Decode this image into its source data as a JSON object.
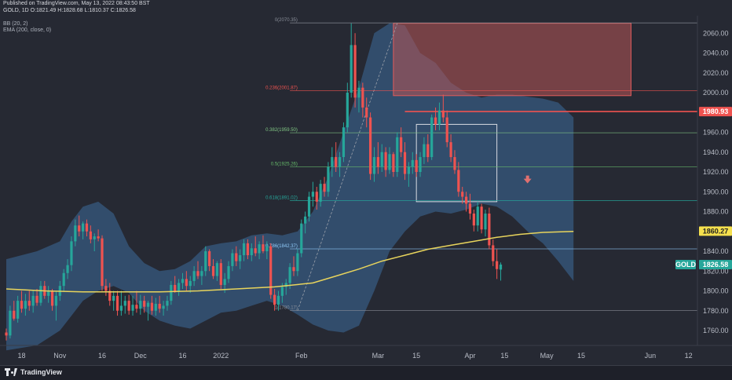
{
  "header": {
    "published": "Published on TradingView.com, May 13, 2022 08:43:50 BST",
    "symbol_line": "GOLD, 1D  O:1821.49  H:1828.68  L:1810.37  C:1826.58",
    "indicator_bb": "BB (20, 2)",
    "indicator_ema": "EMA (200, close, 0)"
  },
  "footer": {
    "brand": "TradingView"
  },
  "colors": {
    "background": "#262933",
    "up_candle": "#26a69a",
    "down_candle": "#ef5350",
    "bollinger_fill": "#3d6b9a",
    "ema": "#e8d45c",
    "price_tag": "#26a69a",
    "resistance_tag": "#ef5350",
    "ema_tag": "#f5e04e"
  },
  "chart_data": {
    "type": "candlestick",
    "symbol": "GOLD",
    "timeframe": "1D",
    "ylim": [
      1745,
      2075
    ],
    "y_ticks": [
      1760,
      1780,
      1800,
      1820,
      1840,
      1860,
      1880,
      1900,
      1920,
      1940,
      1960,
      1980,
      2000,
      2020,
      2040,
      2060
    ],
    "y_tick_labels": [
      "1760.00",
      "1780.00",
      "1800.00",
      "1820.00",
      "1840.00",
      "1860.00",
      "1880.00",
      "1900.00",
      "1920.00",
      "1940.00",
      "1960.00",
      "1980.00",
      "2000.00",
      "2020.00",
      "2040.00",
      "2060.00"
    ],
    "x_labels": [
      {
        "label": "18",
        "bar": 4
      },
      {
        "label": "Nov",
        "bar": 14
      },
      {
        "label": "16",
        "bar": 25
      },
      {
        "label": "Dec",
        "bar": 35
      },
      {
        "label": "16",
        "bar": 46
      },
      {
        "label": "2022",
        "bar": 56
      },
      {
        "label": "Feb",
        "bar": 77
      },
      {
        "label": "Mar",
        "bar": 97
      },
      {
        "label": "15",
        "bar": 107
      },
      {
        "label": "Apr",
        "bar": 121
      },
      {
        "label": "15",
        "bar": 130
      },
      {
        "label": "May",
        "bar": 141
      },
      {
        "label": "15",
        "bar": 150
      },
      {
        "label": "Jun",
        "bar": 168
      },
      {
        "label": "12",
        "bar": 178
      }
    ],
    "fib_levels": [
      {
        "label": "0(2070.35)",
        "value": 2070.35,
        "color": "#8a8f99"
      },
      {
        "label": "0.236(2001.87)",
        "value": 2001.87,
        "color": "#ef5350"
      },
      {
        "label": "0.382(1959.50)",
        "value": 1959.5,
        "color": "#81c784"
      },
      {
        "label": "0.5(1925.26)",
        "value": 1925.26,
        "color": "#66bb6a"
      },
      {
        "label": "0.618(1891.02)",
        "value": 1891.02,
        "color": "#26a69a"
      },
      {
        "label": "0.786(1842.37)",
        "value": 1842.37,
        "color": "#90caf9"
      },
      {
        "label": "1(1780.17)",
        "value": 1780.17,
        "color": "#8a8f99"
      }
    ],
    "resistance_line": {
      "value": 1980.93,
      "label": "1980.93",
      "color": "#ef5350"
    },
    "ema_last": {
      "value": 1860.27,
      "label": "1860.27"
    },
    "last_price": {
      "value": 1826.58,
      "label": "1826.58",
      "symbol": "GOLD"
    },
    "supply_zone": {
      "bar_start": 101,
      "bar_end": 163,
      "y_low": 1997,
      "y_high": 2070
    },
    "consolidation_box": {
      "bar_start": 107,
      "bar_end": 128,
      "y_low": 1890,
      "y_high": 1968
    },
    "trend_line": {
      "bar_start": 76,
      "bar_end": 102,
      "y_start": 1780,
      "y_end": 2070
    },
    "down_arrow": {
      "bar": 136,
      "value": 1910
    },
    "candles": [
      [
        1758,
        1762,
        1750,
        1755
      ],
      [
        1755,
        1785,
        1752,
        1780
      ],
      [
        1780,
        1790,
        1770,
        1772
      ],
      [
        1772,
        1795,
        1768,
        1790
      ],
      [
        1790,
        1800,
        1778,
        1782
      ],
      [
        1782,
        1797,
        1775,
        1790
      ],
      [
        1790,
        1800,
        1780,
        1785
      ],
      [
        1785,
        1800,
        1778,
        1795
      ],
      [
        1795,
        1802,
        1785,
        1788
      ],
      [
        1788,
        1810,
        1785,
        1805
      ],
      [
        1805,
        1810,
        1792,
        1795
      ],
      [
        1795,
        1805,
        1788,
        1800
      ],
      [
        1800,
        1802,
        1780,
        1785
      ],
      [
        1785,
        1800,
        1770,
        1795
      ],
      [
        1795,
        1810,
        1790,
        1805
      ],
      [
        1805,
        1822,
        1800,
        1818
      ],
      [
        1818,
        1832,
        1812,
        1826
      ],
      [
        1826,
        1855,
        1820,
        1850
      ],
      [
        1850,
        1872,
        1845,
        1866
      ],
      [
        1866,
        1876,
        1855,
        1860
      ],
      [
        1860,
        1870,
        1852,
        1868
      ],
      [
        1868,
        1872,
        1855,
        1860
      ],
      [
        1860,
        1866,
        1848,
        1852
      ],
      [
        1852,
        1858,
        1840,
        1855
      ],
      [
        1855,
        1862,
        1850,
        1853
      ],
      [
        1853,
        1856,
        1800,
        1805
      ],
      [
        1805,
        1812,
        1795,
        1800
      ],
      [
        1800,
        1808,
        1785,
        1790
      ],
      [
        1790,
        1800,
        1780,
        1795
      ],
      [
        1795,
        1800,
        1775,
        1780
      ],
      [
        1780,
        1800,
        1775,
        1785
      ],
      [
        1785,
        1795,
        1777,
        1790
      ],
      [
        1790,
        1796,
        1776,
        1780
      ],
      [
        1780,
        1795,
        1775,
        1786
      ],
      [
        1786,
        1800,
        1778,
        1782
      ],
      [
        1782,
        1796,
        1776,
        1790
      ],
      [
        1790,
        1795,
        1778,
        1784
      ],
      [
        1784,
        1790,
        1770,
        1788
      ],
      [
        1788,
        1795,
        1776,
        1780
      ],
      [
        1780,
        1793,
        1775,
        1787
      ],
      [
        1787,
        1795,
        1778,
        1782
      ],
      [
        1782,
        1790,
        1775,
        1785
      ],
      [
        1785,
        1795,
        1780,
        1790
      ],
      [
        1790,
        1810,
        1786,
        1806
      ],
      [
        1806,
        1815,
        1798,
        1800
      ],
      [
        1800,
        1812,
        1795,
        1808
      ],
      [
        1808,
        1818,
        1802,
        1812
      ],
      [
        1812,
        1820,
        1800,
        1805
      ],
      [
        1805,
        1815,
        1798,
        1810
      ],
      [
        1810,
        1825,
        1805,
        1820
      ],
      [
        1820,
        1830,
        1812,
        1815
      ],
      [
        1815,
        1825,
        1806,
        1820
      ],
      [
        1820,
        1845,
        1815,
        1840
      ],
      [
        1840,
        1842,
        1820,
        1825
      ],
      [
        1825,
        1832,
        1812,
        1815
      ],
      [
        1815,
        1830,
        1810,
        1828
      ],
      [
        1828,
        1832,
        1802,
        1806
      ],
      [
        1806,
        1818,
        1798,
        1812
      ],
      [
        1812,
        1830,
        1808,
        1825
      ],
      [
        1825,
        1842,
        1820,
        1838
      ],
      [
        1838,
        1845,
        1825,
        1830
      ],
      [
        1830,
        1842,
        1822,
        1836
      ],
      [
        1836,
        1852,
        1830,
        1848
      ],
      [
        1848,
        1852,
        1832,
        1836
      ],
      [
        1836,
        1848,
        1830,
        1843
      ],
      [
        1843,
        1855,
        1835,
        1838
      ],
      [
        1838,
        1850,
        1832,
        1847
      ],
      [
        1847,
        1856,
        1838,
        1840
      ],
      [
        1840,
        1850,
        1832,
        1845
      ],
      [
        1845,
        1848,
        1792,
        1796
      ],
      [
        1796,
        1802,
        1780,
        1786
      ],
      [
        1786,
        1800,
        1780,
        1795
      ],
      [
        1795,
        1808,
        1788,
        1804
      ],
      [
        1804,
        1812,
        1796,
        1808
      ],
      [
        1808,
        1828,
        1802,
        1824
      ],
      [
        1824,
        1835,
        1815,
        1820
      ],
      [
        1820,
        1842,
        1815,
        1838
      ],
      [
        1838,
        1872,
        1834,
        1868
      ],
      [
        1868,
        1880,
        1858,
        1875
      ],
      [
        1875,
        1900,
        1870,
        1895
      ],
      [
        1895,
        1910,
        1885,
        1900
      ],
      [
        1900,
        1905,
        1882,
        1890
      ],
      [
        1890,
        1912,
        1885,
        1908
      ],
      [
        1908,
        1915,
        1895,
        1900
      ],
      [
        1900,
        1930,
        1895,
        1925
      ],
      [
        1925,
        1945,
        1915,
        1935
      ],
      [
        1935,
        1950,
        1920,
        1925
      ],
      [
        1925,
        1940,
        1915,
        1935
      ],
      [
        1935,
        1970,
        1930,
        1965
      ],
      [
        1965,
        2010,
        1960,
        2000
      ],
      [
        2000,
        2070,
        1995,
        2048
      ],
      [
        2048,
        2060,
        1985,
        1995
      ],
      [
        1995,
        2012,
        1980,
        2005
      ],
      [
        2005,
        2010,
        1975,
        1985
      ],
      [
        1985,
        1995,
        1965,
        1975
      ],
      [
        1975,
        1980,
        1912,
        1918
      ],
      [
        1918,
        1945,
        1910,
        1935
      ],
      [
        1935,
        1950,
        1918,
        1925
      ],
      [
        1925,
        1948,
        1920,
        1940
      ],
      [
        1940,
        1945,
        1915,
        1922
      ],
      [
        1922,
        1945,
        1918,
        1938
      ],
      [
        1938,
        1940,
        1915,
        1920
      ],
      [
        1920,
        1960,
        1915,
        1955
      ],
      [
        1955,
        1965,
        1935,
        1940
      ],
      [
        1940,
        1950,
        1912,
        1918
      ],
      [
        1918,
        1930,
        1905,
        1925
      ],
      [
        1925,
        1940,
        1918,
        1932
      ],
      [
        1932,
        1938,
        1915,
        1920
      ],
      [
        1920,
        1940,
        1915,
        1935
      ],
      [
        1935,
        1955,
        1928,
        1948
      ],
      [
        1948,
        1958,
        1930,
        1935
      ],
      [
        1935,
        1978,
        1932,
        1975
      ],
      [
        1975,
        1985,
        1962,
        1968
      ],
      [
        1968,
        1990,
        1962,
        1982
      ],
      [
        1982,
        1998,
        1970,
        1975
      ],
      [
        1975,
        1982,
        1945,
        1950
      ],
      [
        1950,
        1958,
        1930,
        1935
      ],
      [
        1935,
        1942,
        1918,
        1922
      ],
      [
        1922,
        1930,
        1895,
        1900
      ],
      [
        1900,
        1905,
        1888,
        1895
      ],
      [
        1895,
        1900,
        1880,
        1888
      ],
      [
        1888,
        1898,
        1872,
        1878
      ],
      [
        1878,
        1882,
        1860,
        1866
      ],
      [
        1866,
        1890,
        1860,
        1885
      ],
      [
        1885,
        1888,
        1858,
        1862
      ],
      [
        1862,
        1882,
        1855,
        1878
      ],
      [
        1878,
        1884,
        1842,
        1846
      ],
      [
        1846,
        1852,
        1825,
        1830
      ],
      [
        1830,
        1842,
        1812,
        1822
      ],
      [
        1821.49,
        1828.68,
        1810.37,
        1826.58
      ]
    ],
    "bb_upper": [
      [
        0,
        1832
      ],
      [
        8,
        1840
      ],
      [
        14,
        1850
      ],
      [
        17,
        1870
      ],
      [
        20,
        1885
      ],
      [
        24,
        1890
      ],
      [
        28,
        1878
      ],
      [
        32,
        1845
      ],
      [
        36,
        1828
      ],
      [
        40,
        1820
      ],
      [
        44,
        1822
      ],
      [
        48,
        1830
      ],
      [
        52,
        1845
      ],
      [
        56,
        1848
      ],
      [
        60,
        1850
      ],
      [
        64,
        1856
      ],
      [
        68,
        1858
      ],
      [
        72,
        1856
      ],
      [
        76,
        1860
      ],
      [
        80,
        1880
      ],
      [
        84,
        1915
      ],
      [
        88,
        1960
      ],
      [
        92,
        2005
      ],
      [
        96,
        2060
      ],
      [
        100,
        2070
      ],
      [
        104,
        2068
      ],
      [
        108,
        2040
      ],
      [
        112,
        2030
      ],
      [
        116,
        2010
      ],
      [
        120,
        2000
      ],
      [
        124,
        1995
      ],
      [
        128,
        1998
      ],
      [
        132,
        1998
      ],
      [
        136,
        1996
      ],
      [
        140,
        1994
      ],
      [
        144,
        1990
      ],
      [
        148,
        1975
      ]
    ],
    "bb_lower": [
      [
        0,
        1740
      ],
      [
        8,
        1745
      ],
      [
        14,
        1760
      ],
      [
        17,
        1775
      ],
      [
        20,
        1790
      ],
      [
        24,
        1800
      ],
      [
        28,
        1805
      ],
      [
        32,
        1798
      ],
      [
        36,
        1780
      ],
      [
        40,
        1770
      ],
      [
        44,
        1765
      ],
      [
        48,
        1762
      ],
      [
        52,
        1770
      ],
      [
        56,
        1778
      ],
      [
        60,
        1780
      ],
      [
        64,
        1785
      ],
      [
        68,
        1790
      ],
      [
        72,
        1785
      ],
      [
        76,
        1776
      ],
      [
        80,
        1766
      ],
      [
        84,
        1760
      ],
      [
        88,
        1758
      ],
      [
        92,
        1765
      ],
      [
        96,
        1800
      ],
      [
        100,
        1840
      ],
      [
        104,
        1860
      ],
      [
        108,
        1875
      ],
      [
        112,
        1880
      ],
      [
        116,
        1878
      ],
      [
        120,
        1882
      ],
      [
        124,
        1888
      ],
      [
        128,
        1885
      ],
      [
        132,
        1875
      ],
      [
        136,
        1860
      ],
      [
        140,
        1848
      ],
      [
        144,
        1830
      ],
      [
        148,
        1810
      ]
    ],
    "ema200": [
      [
        0,
        1802
      ],
      [
        10,
        1800
      ],
      [
        20,
        1799
      ],
      [
        30,
        1799
      ],
      [
        40,
        1799
      ],
      [
        50,
        1800
      ],
      [
        60,
        1802
      ],
      [
        70,
        1804
      ],
      [
        80,
        1808
      ],
      [
        86,
        1815
      ],
      [
        92,
        1822
      ],
      [
        98,
        1830
      ],
      [
        104,
        1836
      ],
      [
        110,
        1842
      ],
      [
        116,
        1846
      ],
      [
        122,
        1850
      ],
      [
        128,
        1854
      ],
      [
        134,
        1857
      ],
      [
        140,
        1859
      ],
      [
        148,
        1860
      ]
    ]
  }
}
